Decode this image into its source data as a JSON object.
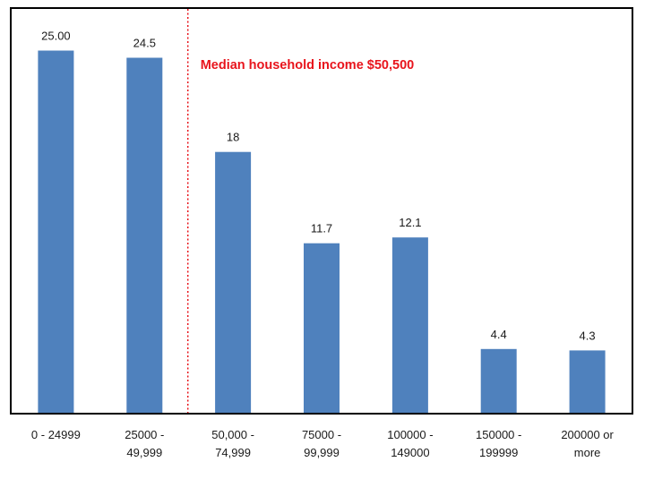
{
  "chart_data": {
    "type": "bar",
    "title": "",
    "xlabel": "",
    "ylabel": "",
    "categories": [
      [
        "0 - 24999"
      ],
      [
        "25000 -",
        "49,999"
      ],
      [
        "50,000 -",
        "74,999"
      ],
      [
        "75000 -",
        "99,999"
      ],
      [
        "100000 -",
        "149000"
      ],
      [
        "150000 -",
        "199999"
      ],
      [
        "200000 or",
        "more"
      ]
    ],
    "values": [
      25.0,
      24.5,
      18,
      11.7,
      12.1,
      4.4,
      4.3
    ],
    "value_labels": [
      "25.00",
      "24.5",
      "18",
      "11.7",
      "12.1",
      "4.4",
      "4.3"
    ],
    "ylim": [
      0,
      27.5
    ],
    "grid": false,
    "legend": "none",
    "bar_color": "#4f81bd",
    "annotation": {
      "text": "Median household income $50,500",
      "color": "#e8141c",
      "line_style": "dotted",
      "position_between_categories": [
        1,
        2
      ]
    }
  }
}
